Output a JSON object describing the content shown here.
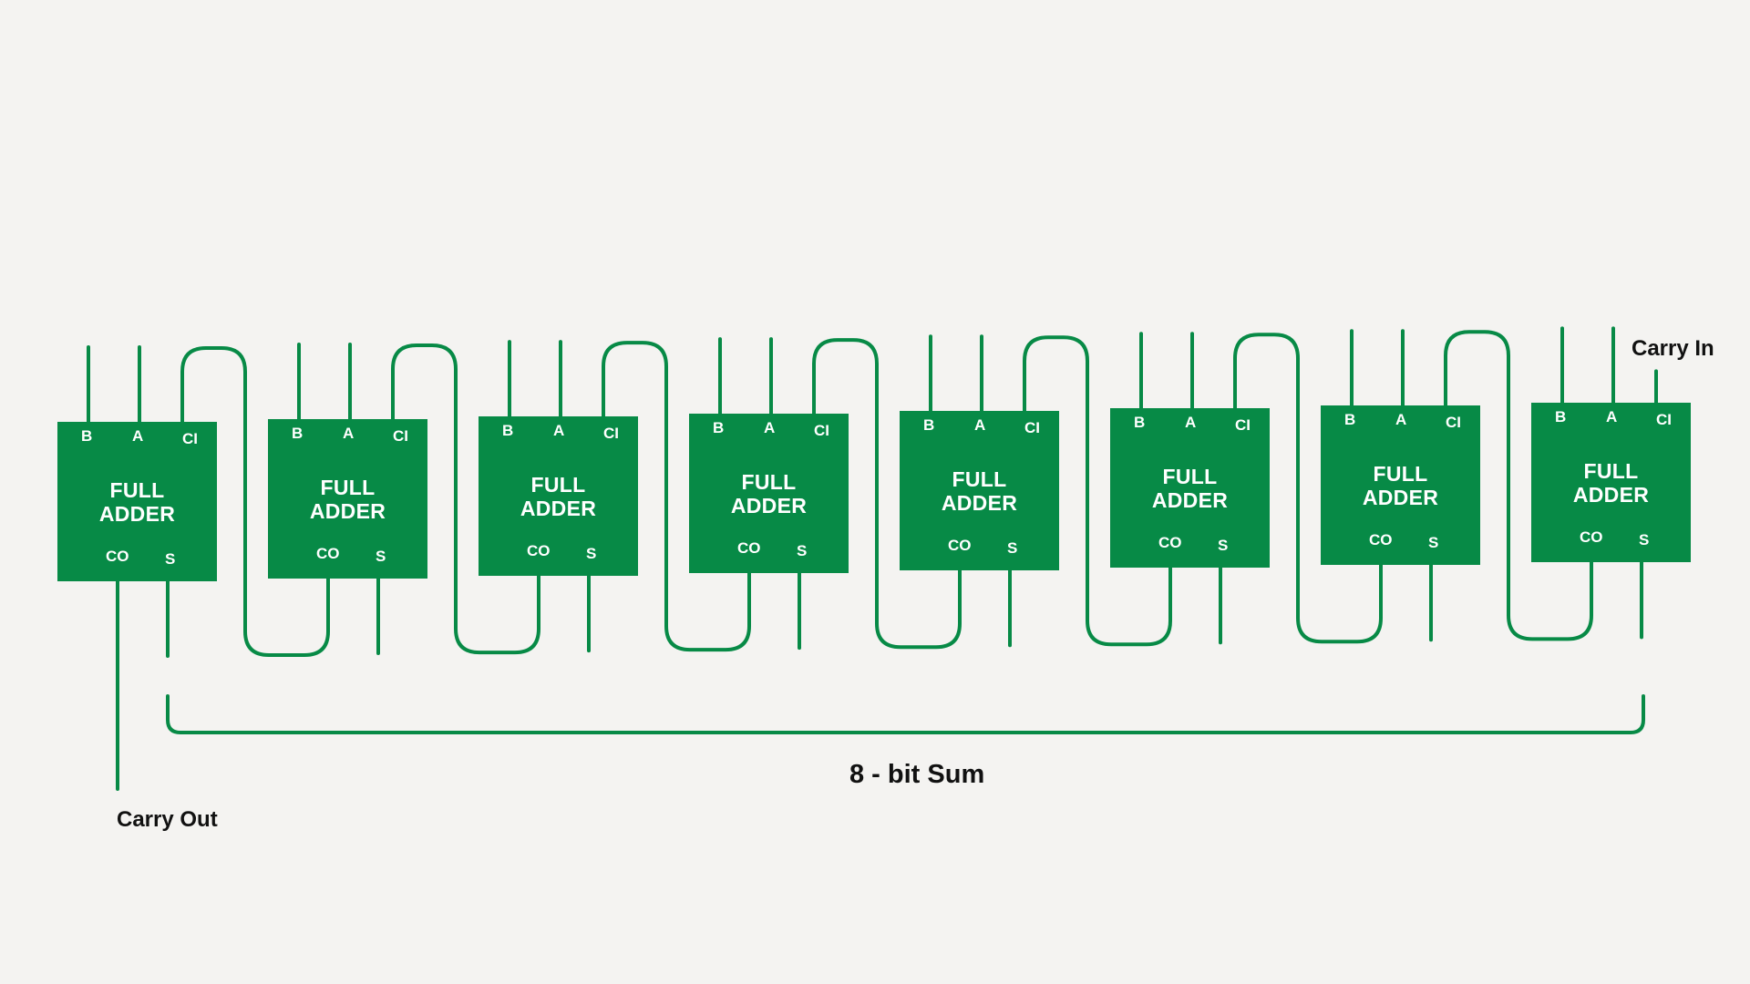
{
  "diagram": {
    "colors": {
      "block": "#078a46",
      "wire": "#078a46",
      "background": "#f4f3f1",
      "text": "#111111"
    },
    "adders": [
      {
        "title_line1": "FULL",
        "title_line2": "ADDER",
        "pins": {
          "b": "B",
          "a": "A",
          "ci": "CI",
          "co": "CO",
          "s": "S"
        }
      },
      {
        "title_line1": "FULL",
        "title_line2": "ADDER",
        "pins": {
          "b": "B",
          "a": "A",
          "ci": "CI",
          "co": "CO",
          "s": "S"
        }
      },
      {
        "title_line1": "FULL",
        "title_line2": "ADDER",
        "pins": {
          "b": "B",
          "a": "A",
          "ci": "CI",
          "co": "CO",
          "s": "S"
        }
      },
      {
        "title_line1": "FULL",
        "title_line2": "ADDER",
        "pins": {
          "b": "B",
          "a": "A",
          "ci": "CI",
          "co": "CO",
          "s": "S"
        }
      },
      {
        "title_line1": "FULL",
        "title_line2": "ADDER",
        "pins": {
          "b": "B",
          "a": "A",
          "ci": "CI",
          "co": "CO",
          "s": "S"
        }
      },
      {
        "title_line1": "FULL",
        "title_line2": "ADDER",
        "pins": {
          "b": "B",
          "a": "A",
          "ci": "CI",
          "co": "CO",
          "s": "S"
        }
      },
      {
        "title_line1": "FULL",
        "title_line2": "ADDER",
        "pins": {
          "b": "B",
          "a": "A",
          "ci": "CI",
          "co": "CO",
          "s": "S"
        }
      },
      {
        "title_line1": "FULL",
        "title_line2": "ADDER",
        "pins": {
          "b": "B",
          "a": "A",
          "ci": "CI",
          "co": "CO",
          "s": "S"
        }
      }
    ],
    "labels": {
      "carry_in": "Carry In",
      "carry_out": "Carry Out",
      "sum": "8 - bit Sum"
    }
  }
}
